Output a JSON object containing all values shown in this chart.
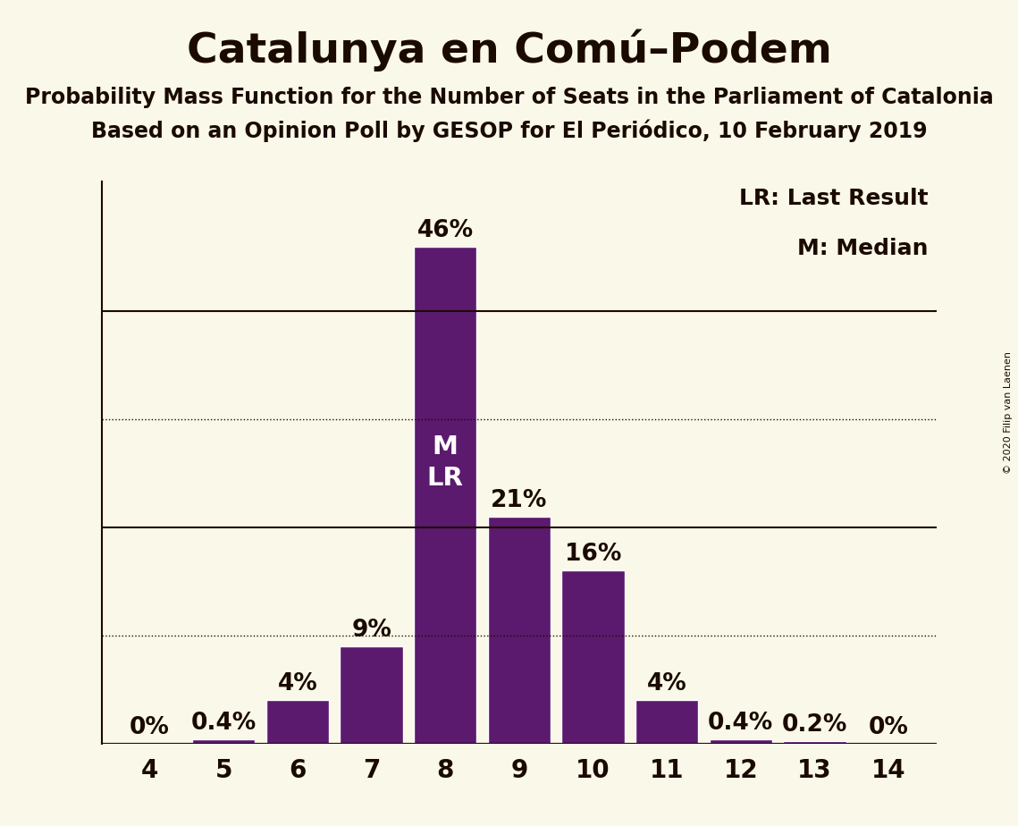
{
  "title": "Catalunya en Comú–Podem",
  "subtitle1": "Probability Mass Function for the Number of Seats in the Parliament of Catalonia",
  "subtitle2": "Based on an Opinion Poll by GESOP for El Periódico, 10 February 2019",
  "copyright": "© 2020 Filip van Laenen",
  "categories": [
    4,
    5,
    6,
    7,
    8,
    9,
    10,
    11,
    12,
    13,
    14
  ],
  "values": [
    0.0,
    0.4,
    4.0,
    9.0,
    46.0,
    21.0,
    16.0,
    4.0,
    0.4,
    0.2,
    0.0
  ],
  "labels": [
    "0%",
    "0.4%",
    "4%",
    "9%",
    "46%",
    "21%",
    "16%",
    "4%",
    "0.4%",
    "0.2%",
    "0%"
  ],
  "bar_color": "#5b1a6e",
  "background_color": "#faf8e8",
  "text_color": "#1a0a00",
  "median_seat": 8,
  "last_result_seat": 8,
  "solid_lines": [
    20,
    40
  ],
  "dotted_lines": [
    10,
    30
  ],
  "legend_lr": "LR: Last Result",
  "legend_m": "M: Median",
  "bar_label_fontsize": 19,
  "title_fontsize": 34,
  "subtitle_fontsize": 17,
  "axis_tick_fontsize": 20,
  "ylabel_fontsize": 22,
  "legend_fontsize": 18,
  "ylim_max": 52,
  "bar_width": 0.85
}
